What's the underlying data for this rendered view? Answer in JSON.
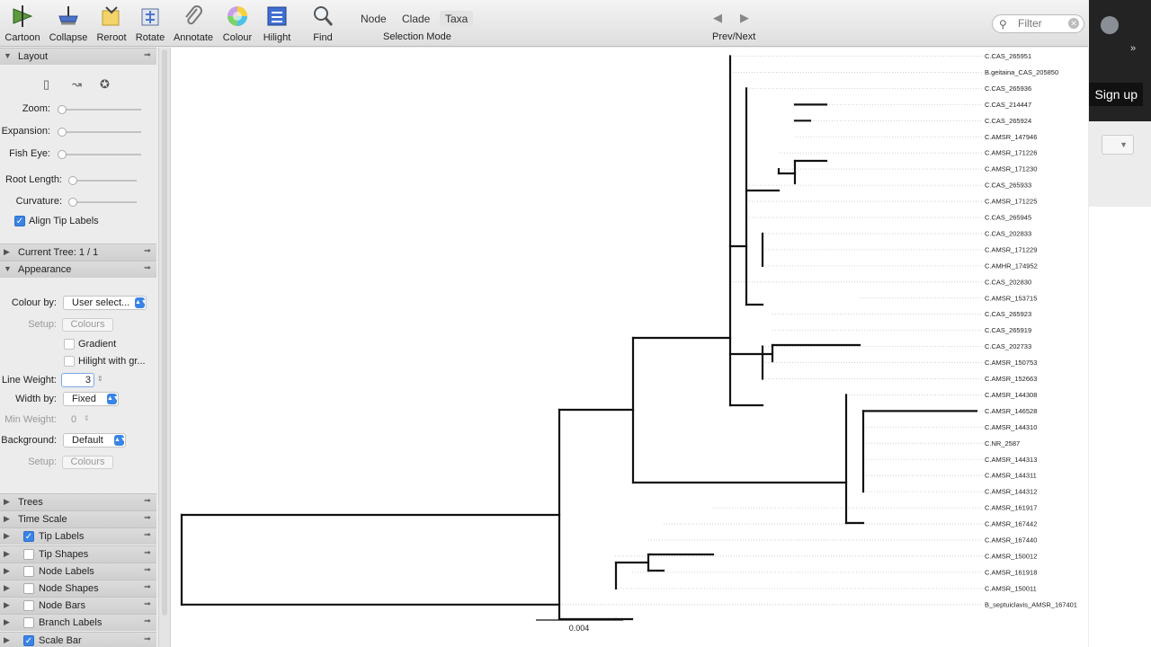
{
  "toolbar": {
    "buttons": [
      {
        "label": "Cartoon",
        "icon": "cartoon-icon"
      },
      {
        "label": "Collapse",
        "icon": "collapse-icon"
      },
      {
        "label": "Reroot",
        "icon": "reroot-icon"
      },
      {
        "label": "Rotate",
        "icon": "rotate-icon"
      },
      {
        "label": "Annotate",
        "icon": "paperclip-icon"
      },
      {
        "label": "Colour",
        "icon": "colour-wheel-icon"
      },
      {
        "label": "Hilight",
        "icon": "hilight-icon"
      },
      {
        "label": "Find",
        "icon": "magnifier-icon"
      }
    ],
    "selection_modes": [
      "Node",
      "Clade",
      "Taxa"
    ],
    "selected_mode": "Taxa",
    "selection_mode_label": "Selection Mode",
    "prev_next_label": "Prev/Next",
    "filter_placeholder": "Filter"
  },
  "panel": {
    "layout": {
      "title": "Layout",
      "zoom_label": "Zoom:",
      "expansion_label": "Expansion:",
      "fisheye_label": "Fish Eye:",
      "root_length_label": "Root Length:",
      "curvature_label": "Curvature:",
      "align_tip_labels": "Align Tip Labels"
    },
    "current_tree": "Current Tree: 1 / 1",
    "appearance": {
      "title": "Appearance",
      "colour_by_label": "Colour by:",
      "colour_by_value": "User select...",
      "setup_label": "Setup:",
      "colours_button": "Colours",
      "gradient": "Gradient",
      "hilight_with": "Hilight with gr...",
      "line_weight_label": "Line Weight:",
      "line_weight_value": "3",
      "width_by_label": "Width by:",
      "width_by_value": "Fixed",
      "min_weight_label": "Min Weight:",
      "min_weight_value": "0",
      "background_label": "Background:",
      "background_value": "Default",
      "setup2_label": "Setup:",
      "colours2_button": "Colours"
    },
    "sections": [
      {
        "title": "Trees",
        "checkbox": null
      },
      {
        "title": "Time Scale",
        "checkbox": null
      },
      {
        "title": "Tip Labels",
        "checkbox": true
      },
      {
        "title": "Tip Shapes",
        "checkbox": false
      },
      {
        "title": "Node Labels",
        "checkbox": false
      },
      {
        "title": "Node Shapes",
        "checkbox": false
      },
      {
        "title": "Node Bars",
        "checkbox": false
      },
      {
        "title": "Branch Labels",
        "checkbox": false
      },
      {
        "title": "Scale Bar",
        "checkbox": true
      }
    ]
  },
  "tree": {
    "tips": [
      "C.CAS_265951",
      "B.geitaina_CAS_205850",
      "C.CAS_265936",
      "C.CAS_214447",
      "C.CAS_265924",
      "C.AMSR_147946",
      "C.AMSR_171226",
      "C.AMSR_171230",
      "C.CAS_265933",
      "C.AMSR_171225",
      "C.CAS_265945",
      "C.CAS_202833",
      "C.AMSR_171229",
      "C.AMHR_174952",
      "C.CAS_202830",
      "C.AMSR_153715",
      "C.CAS_265923",
      "C.CAS_265919",
      "C.CAS_202733",
      "C.AMSR_150753",
      "C.AMSR_152663",
      "C.AMSR_144308",
      "C.AMSR_146528",
      "C.AMSR_144310",
      "C.NR_2587",
      "C.AMSR_144313",
      "C.AMSR_144311",
      "C.AMSR_144312",
      "C.AMSR_161917",
      "C.AMSR_167442",
      "C.AMSR_167440",
      "C.AMSR_150012",
      "C.AMSR_161918",
      "C.AMSR_150011",
      "B_septuiclavis_AMSR_167401"
    ],
    "scale_bar_label": "0.004"
  },
  "browser_side": {
    "signup": "Sign up"
  }
}
